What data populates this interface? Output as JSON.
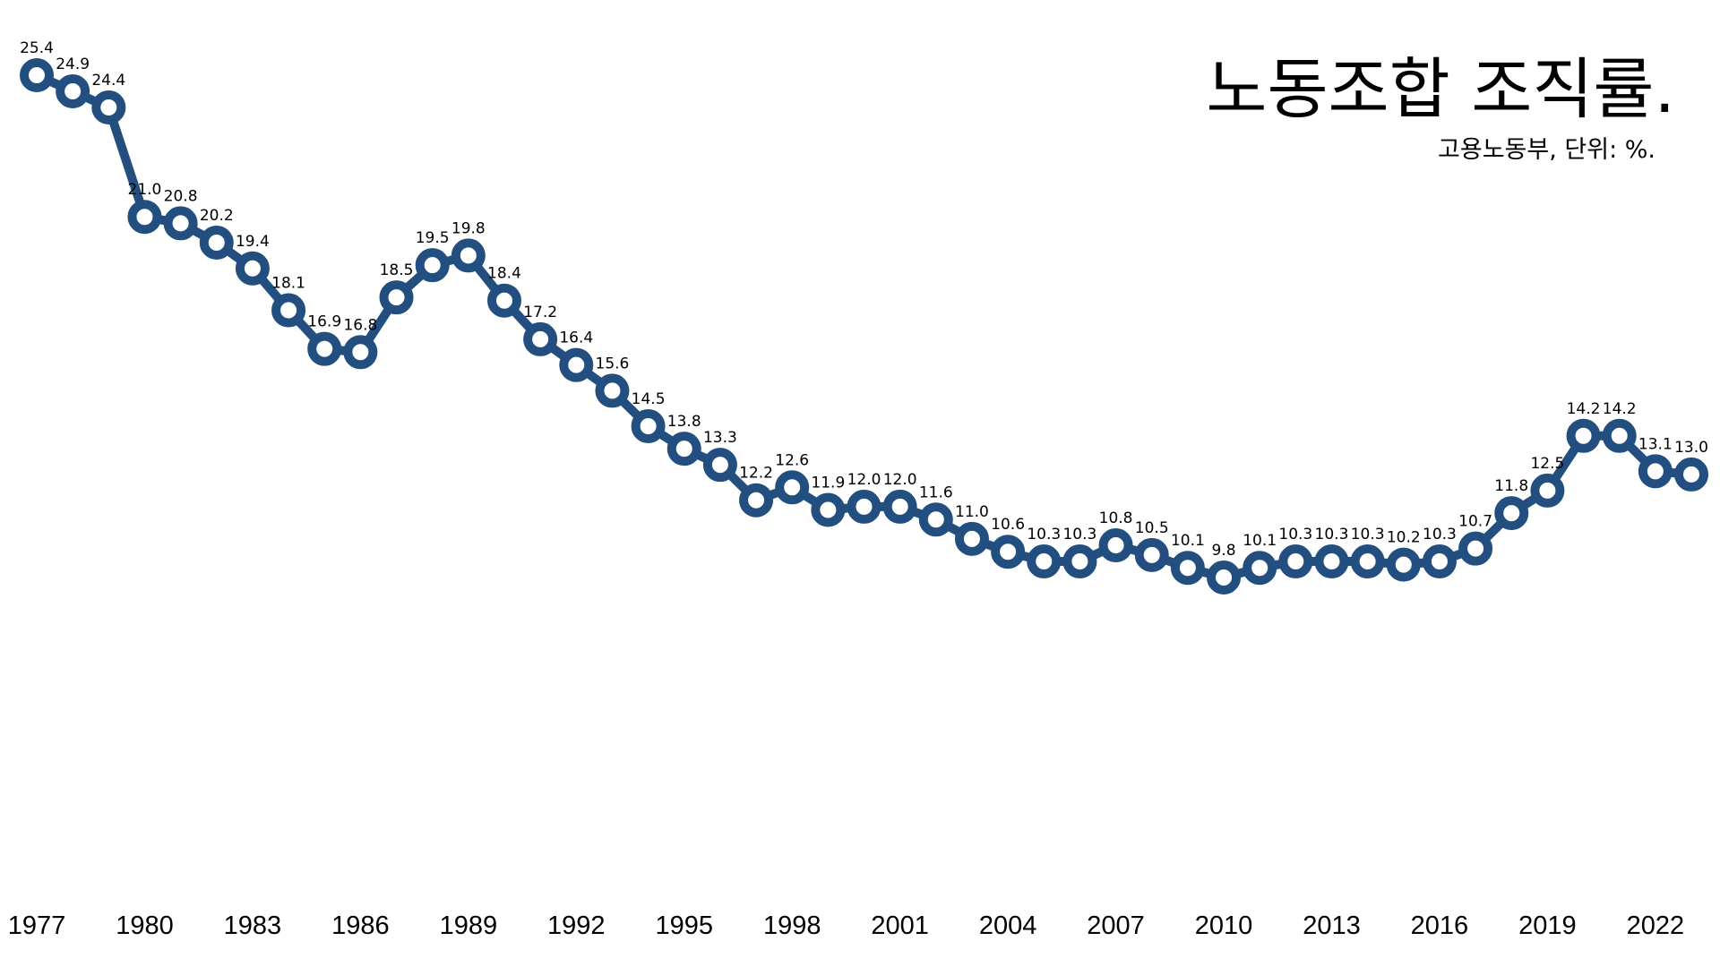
{
  "title": "노동조합 조직률.",
  "subtitle": "고용노동부, 단위: %.",
  "colors": {
    "line": "#234F80",
    "marker_fill": "#ffffff",
    "text": "#000000"
  },
  "chart_data": {
    "type": "line",
    "title": "노동조합 조직률.",
    "subtitle": "고용노동부, 단위: %.",
    "xlabel": "",
    "ylabel": "",
    "ylim": [
      0,
      26
    ],
    "x": [
      1977,
      1978,
      1979,
      1980,
      1981,
      1982,
      1983,
      1984,
      1985,
      1986,
      1987,
      1988,
      1989,
      1990,
      1991,
      1992,
      1993,
      1994,
      1995,
      1996,
      1997,
      1998,
      1999,
      2000,
      2001,
      2002,
      2003,
      2004,
      2005,
      2006,
      2007,
      2008,
      2009,
      2010,
      2011,
      2012,
      2013,
      2014,
      2015,
      2016,
      2017,
      2018,
      2019,
      2020,
      2021,
      2022,
      2023
    ],
    "values": [
      25.4,
      24.9,
      24.4,
      21.0,
      20.8,
      20.2,
      19.4,
      18.1,
      16.9,
      16.8,
      18.5,
      19.5,
      19.8,
      18.4,
      17.2,
      16.4,
      15.6,
      14.5,
      13.8,
      13.3,
      12.2,
      12.6,
      11.9,
      12.0,
      12.0,
      11.6,
      11.0,
      10.6,
      10.3,
      10.3,
      10.8,
      10.5,
      10.1,
      9.8,
      10.1,
      10.3,
      10.3,
      10.3,
      10.2,
      10.3,
      10.7,
      11.8,
      12.5,
      14.2,
      14.2,
      13.1,
      13.0
    ],
    "labels": [
      "25.4",
      "24.9",
      "24.4",
      "21.0",
      "20.8",
      "20.2",
      "19.4",
      "18.1",
      "16.9",
      "16.8",
      "18.5",
      "19.5",
      "19.8",
      "18.4",
      "17.2",
      "16.4",
      "15.6",
      "14.5",
      "13.8",
      "13.3",
      "12.2",
      "12.6",
      "11.9",
      "12.0",
      "12.0",
      "11.6",
      "11.0",
      "10.6",
      "10.3",
      "10.3",
      "10.8",
      "10.5",
      "10.1",
      "9.8",
      "10.1",
      "10.3",
      "10.3",
      "10.3",
      "10.2",
      "10.3",
      "10.7",
      "11.8",
      "12.5",
      "14.2",
      "14.2",
      "13.1",
      "13.0"
    ],
    "x_ticks": [
      "1977",
      "1980",
      "1983",
      "1986",
      "1989",
      "1992",
      "1995",
      "1998",
      "2001",
      "2004",
      "2007",
      "2010",
      "2013",
      "2016",
      "2019",
      "2022"
    ],
    "grid": false,
    "legend": "none"
  }
}
